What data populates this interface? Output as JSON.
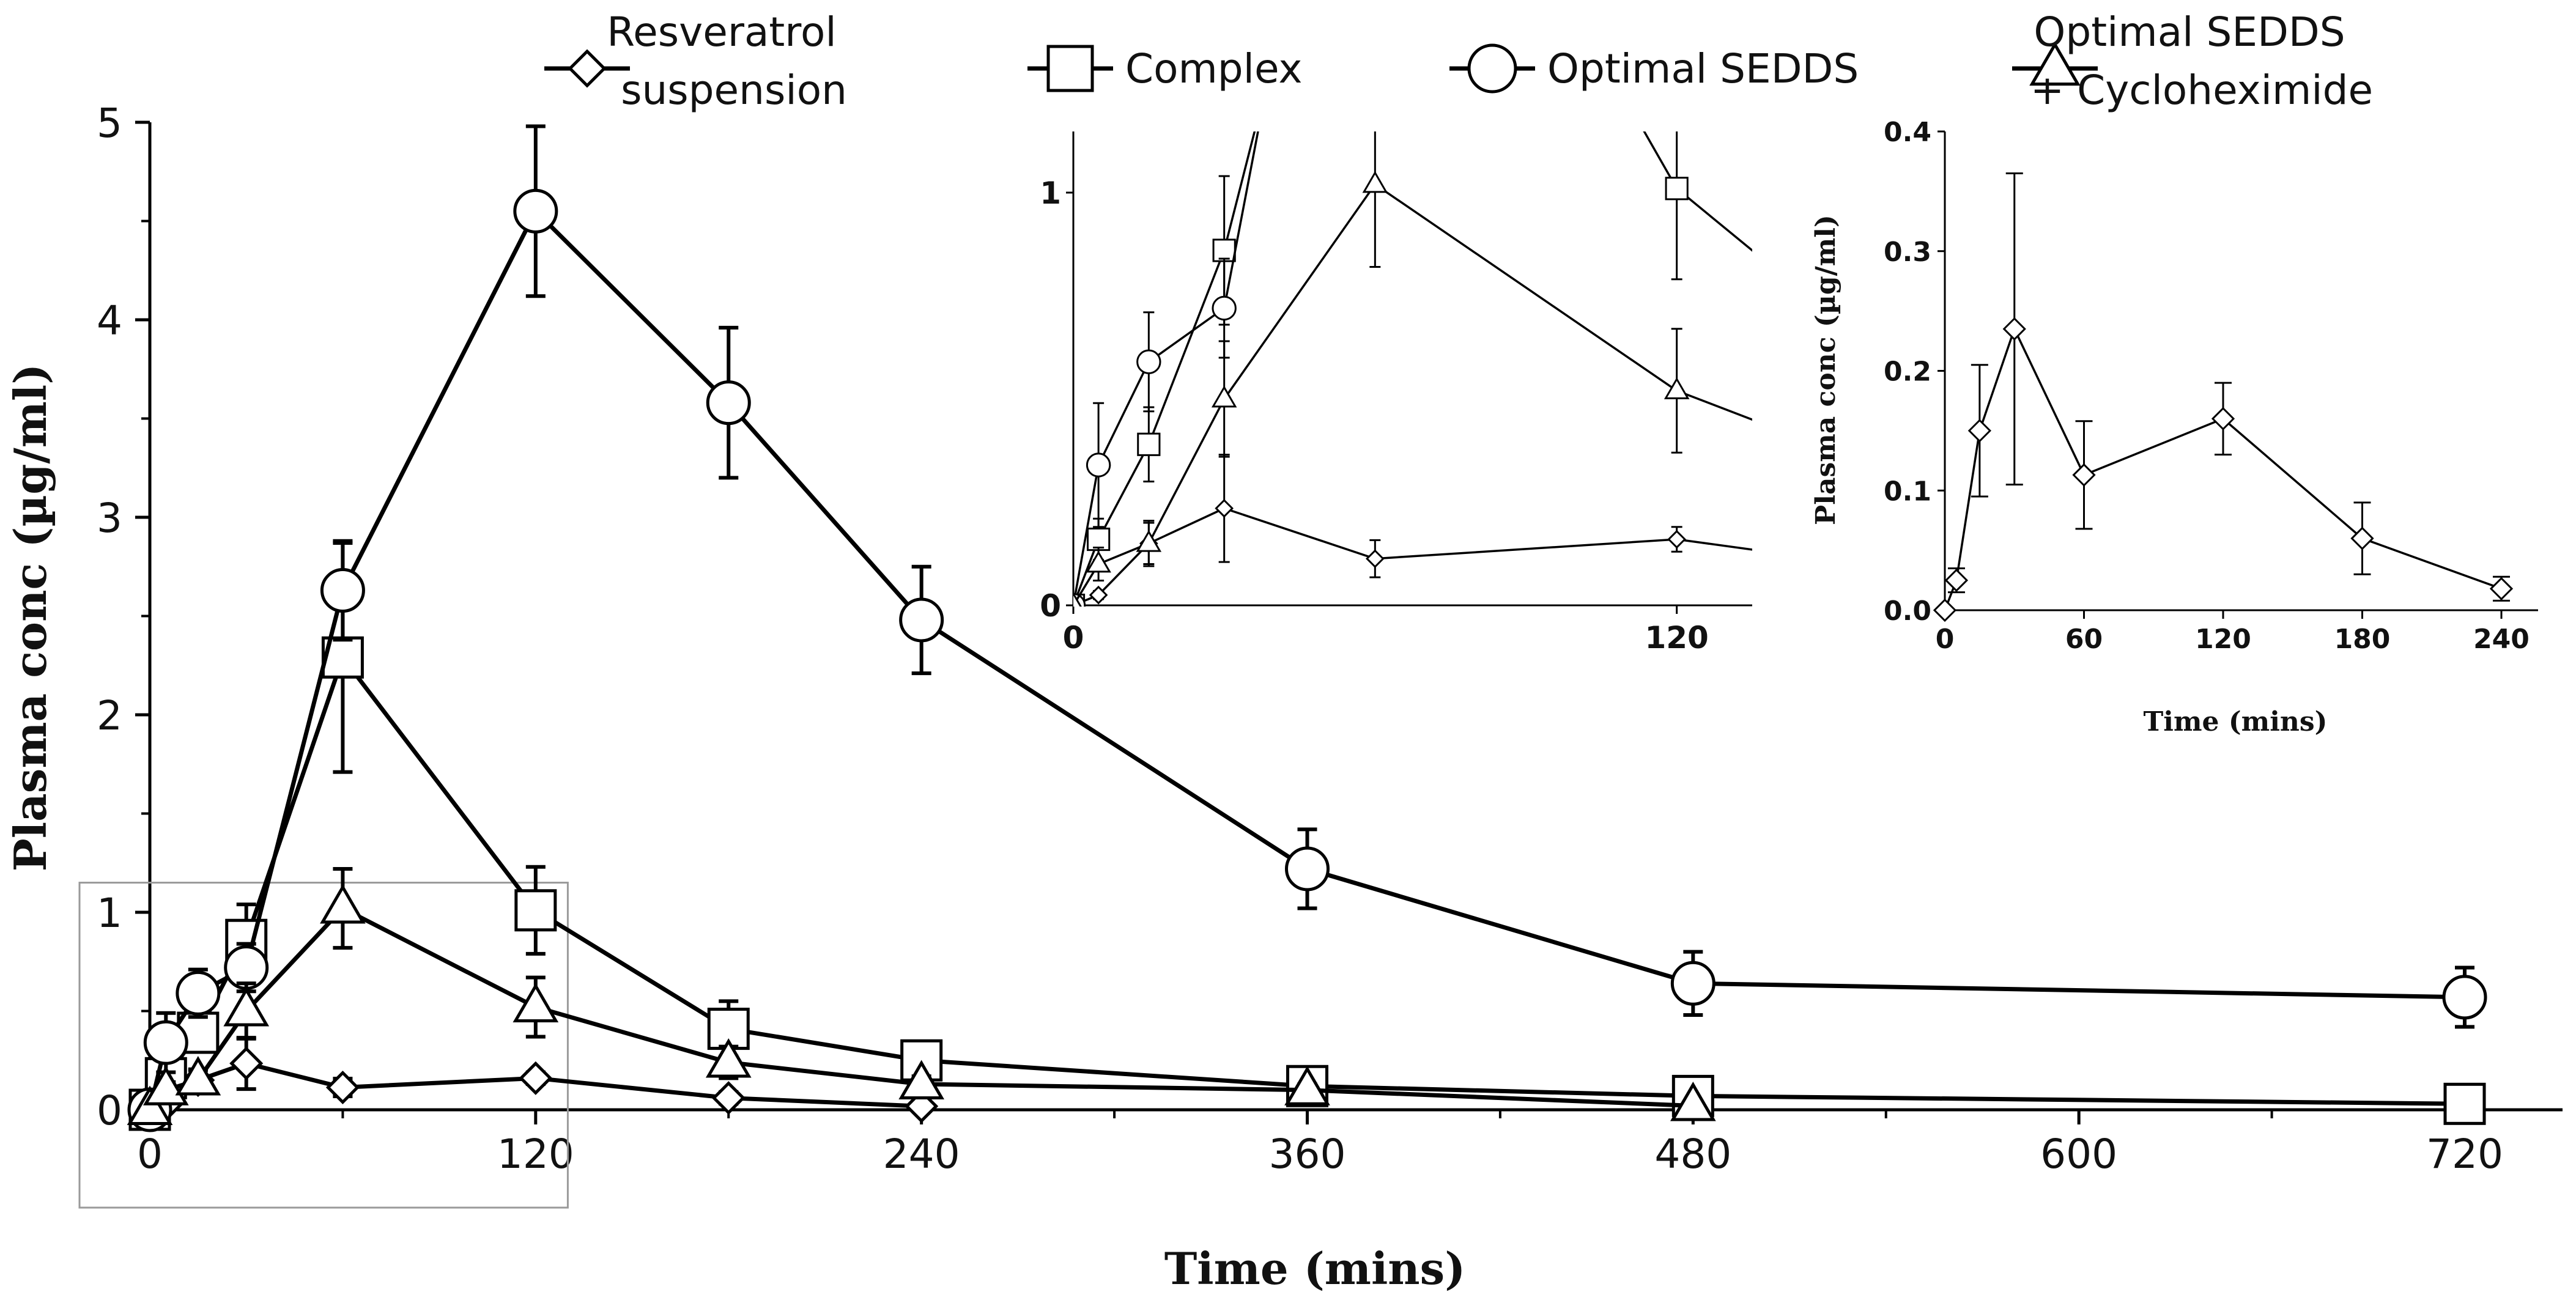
{
  "chart_data": [
    {
      "type": "line",
      "xlabel": "Time (mins)",
      "ylabel": "Plasma conc (µg/ml)",
      "xlim": [
        0,
        720
      ],
      "ylim": [
        0,
        5
      ],
      "xticks": [
        0,
        120,
        240,
        360,
        480,
        600,
        720
      ],
      "yticks": [
        0,
        1,
        2,
        3,
        4,
        5
      ],
      "legend_position": "top",
      "series": [
        {
          "name": "Resveratrol suspension",
          "name_lines": [
            "Resveratrol",
            "suspension"
          ],
          "marker": "diamond",
          "x": [
            0,
            5,
            15,
            30,
            60,
            120,
            180,
            240
          ],
          "y": [
            0,
            0.025,
            0.15,
            0.235,
            0.113,
            0.16,
            0.06,
            0.018
          ],
          "err": [
            0,
            0.01,
            0.055,
            0.13,
            0.045,
            0.03,
            0.03,
            0.01
          ]
        },
        {
          "name": "Complex",
          "name_lines": [
            "Complex"
          ],
          "marker": "square",
          "x": [
            0,
            5,
            15,
            30,
            60,
            120,
            180,
            240,
            360,
            480,
            720
          ],
          "y": [
            0,
            0.16,
            0.39,
            0.86,
            2.29,
            1.01,
            0.41,
            0.25,
            0.12,
            0.07,
            0.03
          ],
          "err": [
            0,
            0.05,
            0.09,
            0.18,
            0.58,
            0.22,
            0.14,
            0.05,
            0.03,
            0.03,
            0.02
          ]
        },
        {
          "name": "Optimal SEDDS",
          "name_lines": [
            "Optimal SEDDS"
          ],
          "marker": "circle",
          "x": [
            0,
            5,
            15,
            30,
            60,
            120,
            180,
            240,
            360,
            480,
            720
          ],
          "y": [
            0,
            0.34,
            0.59,
            0.72,
            2.63,
            4.55,
            3.58,
            2.48,
            1.22,
            0.64,
            0.57
          ],
          "err": [
            0,
            0.15,
            0.12,
            0.12,
            0.25,
            0.43,
            0.38,
            0.27,
            0.2,
            0.16,
            0.15
          ]
        },
        {
          "name": "Optimal SEDDS + Cycloheximide",
          "name_lines": [
            "Optimal SEDDS",
            "+ Cycloheximide"
          ],
          "marker": "triangle",
          "x": [
            0,
            5,
            15,
            30,
            60,
            120,
            180,
            240,
            360,
            480
          ],
          "y": [
            0,
            0.1,
            0.15,
            0.5,
            1.02,
            0.52,
            0.24,
            0.13,
            0.1,
            0.02
          ],
          "err": [
            0,
            0.04,
            0.05,
            0.14,
            0.2,
            0.15,
            0.08,
            0.04,
            0.03,
            0.02
          ]
        }
      ]
    },
    {
      "type": "line",
      "xlim": [
        0,
        135
      ],
      "ylim": [
        0,
        1
      ],
      "xticks": [
        0,
        120
      ],
      "yticks": [
        0,
        1
      ],
      "note": "zoom inset of main chart (0-120 min region)"
    },
    {
      "type": "line",
      "xlabel": "Time (mins)",
      "ylabel": "Plasma conc (µg/ml)",
      "xlim": [
        0,
        240
      ],
      "ylim": [
        0,
        0.4
      ],
      "xticks": [
        0,
        60,
        120,
        180,
        240
      ],
      "yticks": [
        "0.0",
        "0.1",
        "0.2",
        "0.3",
        "0.4"
      ],
      "series": [
        {
          "name": "Resveratrol suspension",
          "marker": "diamond",
          "x": [
            0,
            5,
            15,
            30,
            60,
            120,
            180,
            240
          ],
          "y": [
            0,
            0.025,
            0.15,
            0.235,
            0.113,
            0.16,
            0.06,
            0.018
          ],
          "err": [
            0,
            0.01,
            0.055,
            0.13,
            0.045,
            0.03,
            0.03,
            0.01
          ]
        }
      ]
    }
  ]
}
